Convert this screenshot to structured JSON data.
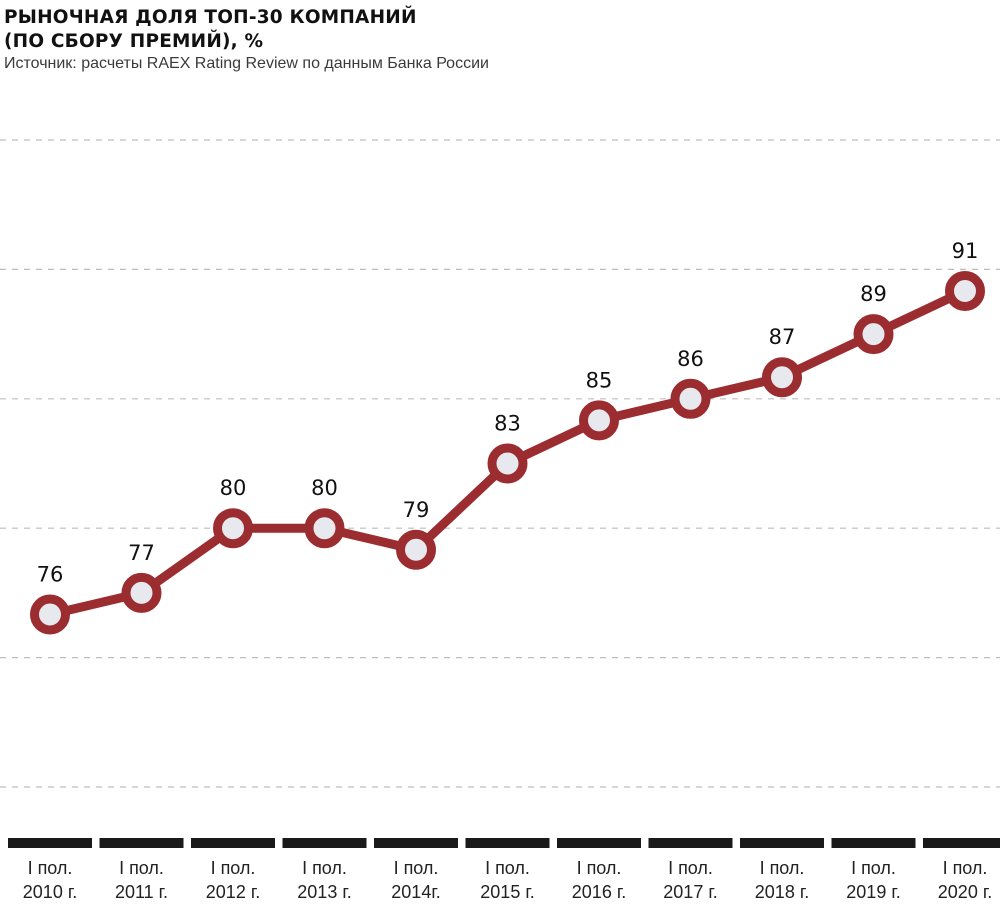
{
  "title_line1": "РЫНОЧНАЯ ДОЛЯ ТОП-30 КОМПАНИЙ",
  "title_line2": "(ПО СБОРУ ПРЕМИЙ), %",
  "source": "Источник: расчеты RAEX Rating Review по данным Банка России",
  "colors": {
    "line": "#9b2c2f",
    "marker_fill": "#e8e9ee",
    "grid": "#bdbdbd",
    "axis_bar": "#1a1a1a"
  },
  "chart_data": {
    "type": "line",
    "title": "РЫНОЧНАЯ ДОЛЯ ТОП-30 КОМПАНИЙ (ПО СБОРУ ПРЕМИЙ), %",
    "categories": [
      [
        "I пол.",
        "2010 г."
      ],
      [
        "I пол.",
        "2011 г."
      ],
      [
        "I пол.",
        "2012 г."
      ],
      [
        "I пол.",
        "2013 г."
      ],
      [
        "I пол.",
        "2014г."
      ],
      [
        "I пол.",
        "2015 г."
      ],
      [
        "I пол.",
        "2016 г."
      ],
      [
        "I пол.",
        "2017 г."
      ],
      [
        "I пол.",
        "2018 г."
      ],
      [
        "I пол.",
        "2019 г."
      ],
      [
        "I пол.",
        "2020 г."
      ]
    ],
    "values": [
      76,
      77,
      80,
      80,
      79,
      83,
      85,
      86,
      87,
      89,
      91
    ],
    "ylim": [
      68,
      98
    ],
    "grid": true,
    "grid_style": "dashed",
    "xlabel": "",
    "ylabel": ""
  }
}
